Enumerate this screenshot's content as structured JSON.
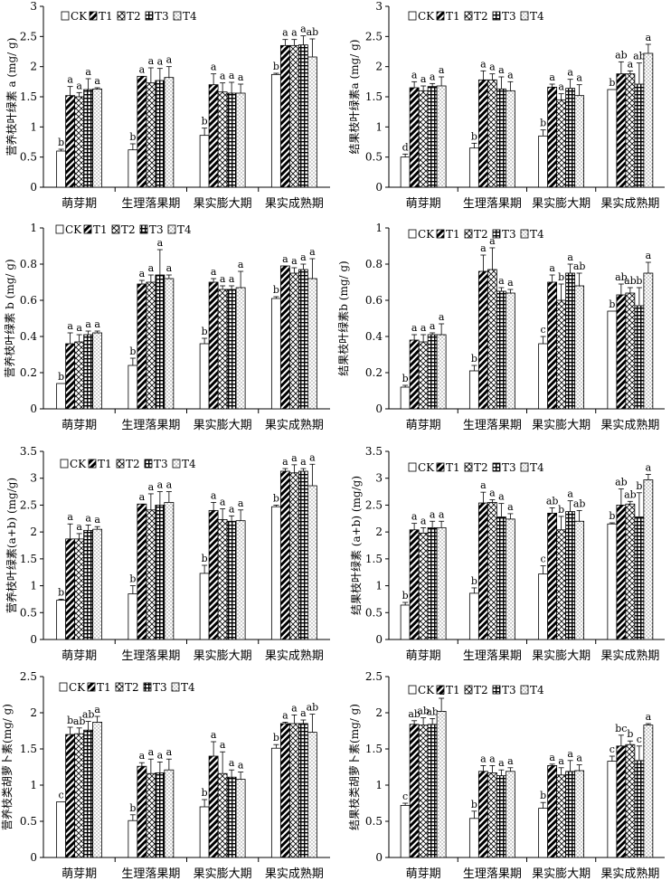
{
  "figure": {
    "groups": [
      "萌芽期",
      "生理落果期",
      "果实膨大期",
      "果实成熟期"
    ],
    "treatments": [
      "CK",
      "T1",
      "T2",
      "T3",
      "T4"
    ]
  },
  "chart_data": [
    {
      "type": "bar",
      "id": "a1",
      "ylabel": "营养枝叶绿素 a (mg/ g)",
      "ylim": [
        0,
        3
      ],
      "yticks": [
        0,
        0.5,
        1,
        1.5,
        2,
        2.5,
        3
      ],
      "categories": [
        "萌芽期",
        "生理落果期",
        "果实膨大期",
        "果实成熟期"
      ],
      "series": [
        {
          "name": "CK",
          "values": [
            0.6,
            0.62,
            0.86,
            1.87
          ],
          "err": [
            0.03,
            0.1,
            0.12,
            0.02
          ],
          "letters": [
            "b",
            "b",
            "b",
            "b"
          ]
        },
        {
          "name": "T1",
          "values": [
            1.52,
            1.84,
            1.7,
            2.35
          ],
          "err": [
            0.15,
            0.0,
            0.18,
            0.1
          ],
          "letters": [
            "a",
            "a",
            "a",
            "a"
          ]
        },
        {
          "name": "T2",
          "values": [
            1.5,
            1.73,
            1.58,
            2.35
          ],
          "err": [
            0.07,
            0.25,
            0.15,
            0.1
          ],
          "letters": [
            "a",
            "a",
            "a",
            "a"
          ]
        },
        {
          "name": "T3",
          "values": [
            1.62,
            1.77,
            1.56,
            2.36
          ],
          "err": [
            0.18,
            0.2,
            0.18,
            0.15
          ],
          "letters": [
            "a",
            "a",
            "a",
            "a"
          ]
        },
        {
          "name": "T4",
          "values": [
            1.63,
            1.82,
            1.56,
            2.16
          ],
          "err": [
            0.02,
            0.18,
            0.15,
            0.3
          ],
          "letters": [
            "a",
            "a",
            "a",
            "ab"
          ]
        }
      ]
    },
    {
      "type": "bar",
      "id": "a2",
      "ylabel": "结果枝叶绿素a (mg/ g)",
      "ylim": [
        0,
        3
      ],
      "yticks": [
        0,
        0.5,
        1,
        1.5,
        2,
        2.5,
        3
      ],
      "categories": [
        "萌芽期",
        "生理落果期",
        "果实膨大期",
        "果实成熟期"
      ],
      "series": [
        {
          "name": "CK",
          "values": [
            0.5,
            0.65,
            0.85,
            1.62
          ],
          "err": [
            0.05,
            0.08,
            0.1,
            0.0
          ],
          "letters": [
            "d",
            "b",
            "b",
            "b"
          ]
        },
        {
          "name": "T1",
          "values": [
            1.65,
            1.78,
            1.66,
            1.88
          ],
          "err": [
            0.1,
            0.15,
            0.05,
            0.2
          ],
          "letters": [
            "a",
            "a",
            "a",
            "ab"
          ]
        },
        {
          "name": "T2",
          "values": [
            1.6,
            1.78,
            1.45,
            1.88
          ],
          "err": [
            0.08,
            0.1,
            0.1,
            0.05
          ],
          "letters": [
            "a",
            "a",
            "a",
            "a"
          ]
        },
        {
          "name": "T3",
          "values": [
            1.67,
            1.63,
            1.64,
            1.71
          ],
          "err": [
            0.05,
            0.2,
            0.15,
            0.35
          ],
          "letters": [
            "a",
            "a",
            "a",
            "ab"
          ]
        },
        {
          "name": "T4",
          "values": [
            1.68,
            1.6,
            1.52,
            2.22
          ],
          "err": [
            0.15,
            0.15,
            0.18,
            0.15
          ],
          "letters": [
            "a",
            "a",
            "a",
            "a"
          ]
        }
      ]
    },
    {
      "type": "bar",
      "id": "b1",
      "ylabel": "营养枝叶绿素 b (mg/ g)",
      "ylim": [
        0,
        1
      ],
      "yticks": [
        0,
        0.2,
        0.4,
        0.6,
        0.8,
        1
      ],
      "categories": [
        "萌芽期",
        "生理落果期",
        "果实膨大期",
        "果实成熟期"
      ],
      "series": [
        {
          "name": "CK",
          "values": [
            0.14,
            0.24,
            0.36,
            0.61
          ],
          "err": [
            0.0,
            0.04,
            0.03,
            0.01
          ],
          "letters": [
            "b",
            "b",
            "b",
            "b"
          ]
        },
        {
          "name": "T1",
          "values": [
            0.36,
            0.69,
            0.7,
            0.79
          ],
          "err": [
            0.06,
            0.02,
            0.02,
            0.0
          ],
          "letters": [
            "a",
            "a",
            "a",
            "a"
          ]
        },
        {
          "name": "T2",
          "values": [
            0.37,
            0.7,
            0.66,
            0.75
          ],
          "err": [
            0.04,
            0.04,
            0.02,
            0.03
          ],
          "letters": [
            "a",
            "a",
            "a",
            "a"
          ]
        },
        {
          "name": "T3",
          "values": [
            0.41,
            0.74,
            0.66,
            0.77
          ],
          "err": [
            0.02,
            0.14,
            0.02,
            0.03
          ],
          "letters": [
            "a",
            "a",
            "a",
            "a"
          ]
        },
        {
          "name": "T4",
          "values": [
            0.42,
            0.72,
            0.67,
            0.72
          ],
          "err": [
            0.01,
            0.02,
            0.09,
            0.11
          ],
          "letters": [
            "a",
            "a",
            "a",
            "a"
          ]
        }
      ]
    },
    {
      "type": "bar",
      "id": "b2",
      "ylabel": "结果枝叶绿素b (mg/ g)",
      "ylim": [
        0,
        1
      ],
      "yticks": [
        0,
        0.2,
        0.4,
        0.6,
        0.8,
        1
      ],
      "categories": [
        "萌芽期",
        "生理落果期",
        "果实膨大期",
        "果实成熟期"
      ],
      "series": [
        {
          "name": "CK",
          "values": [
            0.12,
            0.21,
            0.36,
            0.54
          ],
          "err": [
            0.01,
            0.03,
            0.04,
            0.0
          ],
          "letters": [
            "b",
            "b",
            "c",
            "b"
          ]
        },
        {
          "name": "T1",
          "values": [
            0.38,
            0.76,
            0.7,
            0.63
          ],
          "err": [
            0.03,
            0.09,
            0.04,
            0.06
          ],
          "letters": [
            "a",
            "a",
            "a",
            "ab"
          ]
        },
        {
          "name": "T2",
          "values": [
            0.37,
            0.77,
            0.6,
            0.64
          ],
          "err": [
            0.04,
            0.12,
            0.09,
            0.03
          ],
          "letters": [
            "a",
            "a",
            "b",
            "ab"
          ]
        },
        {
          "name": "T3",
          "values": [
            0.41,
            0.65,
            0.75,
            0.57
          ],
          "err": [
            0.01,
            0.02,
            0.05,
            0.1
          ],
          "letters": [
            "a",
            "a",
            "a",
            "b"
          ]
        },
        {
          "name": "T4",
          "values": [
            0.41,
            0.64,
            0.68,
            0.75
          ],
          "err": [
            0.06,
            0.02,
            0.07,
            0.06
          ],
          "letters": [
            "a",
            "a",
            "ab",
            "a"
          ]
        }
      ]
    },
    {
      "type": "bar",
      "id": "ab1",
      "ylabel": "营养枝叶绿素(a+b) (mg/g)",
      "ylim": [
        0,
        3.5
      ],
      "yticks": [
        0,
        0.5,
        1,
        1.5,
        2,
        2.5,
        3,
        3.5
      ],
      "categories": [
        "萌芽期",
        "生理落果期",
        "果实膨大期",
        "果实成熟期"
      ],
      "series": [
        {
          "name": "CK",
          "values": [
            0.73,
            0.85,
            1.23,
            2.47
          ],
          "err": [
            0.02,
            0.15,
            0.15,
            0.03
          ],
          "letters": [
            "b",
            "b",
            "b",
            "b"
          ]
        },
        {
          "name": "T1",
          "values": [
            1.87,
            2.52,
            2.4,
            3.13
          ],
          "err": [
            0.28,
            0.0,
            0.15,
            0.05
          ],
          "letters": [
            "a",
            "a",
            "a",
            "a"
          ]
        },
        {
          "name": "T2",
          "values": [
            1.87,
            2.41,
            2.23,
            3.1
          ],
          "err": [
            0.1,
            0.3,
            0.2,
            0.15
          ],
          "letters": [
            "a",
            "a",
            "a",
            "a"
          ]
        },
        {
          "name": "T3",
          "values": [
            2.03,
            2.5,
            2.2,
            3.13
          ],
          "err": [
            0.1,
            0.25,
            0.1,
            0.05
          ],
          "letters": [
            "a",
            "a",
            "a",
            "a"
          ]
        },
        {
          "name": "T4",
          "values": [
            2.05,
            2.55,
            2.21,
            2.86
          ],
          "err": [
            0.05,
            0.2,
            0.2,
            0.4
          ],
          "letters": [
            "a",
            "a",
            "a",
            "a"
          ]
        }
      ]
    },
    {
      "type": "bar",
      "id": "ab2",
      "ylabel": "结果枝叶绿素 (a+b) (mg/g)",
      "ylim": [
        0,
        3.5
      ],
      "yticks": [
        0,
        0.5,
        1,
        1.5,
        2,
        2.5,
        3,
        3.5
      ],
      "categories": [
        "萌芽期",
        "生理落果期",
        "果实膨大期",
        "果实成熟期"
      ],
      "series": [
        {
          "name": "CK",
          "values": [
            0.64,
            0.86,
            1.22,
            2.15
          ],
          "err": [
            0.05,
            0.1,
            0.15,
            0.02
          ],
          "letters": [
            "b",
            "b",
            "c",
            "b"
          ]
        },
        {
          "name": "T1",
          "values": [
            2.04,
            2.54,
            2.35,
            2.5
          ],
          "err": [
            0.12,
            0.2,
            0.1,
            0.3
          ],
          "letters": [
            "a",
            "a",
            "ab",
            "ab"
          ]
        },
        {
          "name": "T2",
          "values": [
            1.98,
            2.55,
            2.04,
            2.52
          ],
          "err": [
            0.1,
            0.05,
            0.25,
            0.05
          ],
          "letters": [
            "a",
            "a",
            "b",
            "ab"
          ]
        },
        {
          "name": "T3",
          "values": [
            2.08,
            2.28,
            2.38,
            2.28
          ],
          "err": [
            0.12,
            0.25,
            0.2,
            0.45
          ],
          "letters": [
            "a",
            "a",
            "a",
            "b"
          ]
        },
        {
          "name": "T4",
          "values": [
            2.08,
            2.24,
            2.2,
            2.97
          ],
          "err": [
            0.12,
            0.1,
            0.2,
            0.1
          ],
          "letters": [
            "a",
            "a",
            "ab",
            "a"
          ]
        }
      ]
    },
    {
      "type": "bar",
      "id": "c1",
      "ylabel": "营养枝类胡萝卜素(mg/ g)",
      "ylim": [
        0,
        2.5
      ],
      "yticks": [
        0,
        0.5,
        1,
        1.5,
        2,
        2.5
      ],
      "categories": [
        "萌芽期",
        "生理落果期",
        "果实膨大期",
        "果实成熟期"
      ],
      "series": [
        {
          "name": "CK",
          "values": [
            0.77,
            0.51,
            0.7,
            1.51
          ],
          "err": [
            0.0,
            0.08,
            0.1,
            0.05
          ],
          "letters": [
            "c",
            "b",
            "b",
            "b"
          ]
        },
        {
          "name": "T1",
          "values": [
            1.7,
            1.26,
            1.4,
            1.85
          ],
          "err": [
            0.1,
            0.05,
            0.2,
            0.02
          ],
          "letters": [
            "b",
            "a",
            "a",
            "a"
          ]
        },
        {
          "name": "T2",
          "values": [
            1.71,
            1.16,
            1.16,
            1.85
          ],
          "err": [
            0.08,
            0.2,
            0.3,
            0.12
          ],
          "letters": [
            "ab",
            "a",
            "a",
            "a"
          ]
        },
        {
          "name": "T3",
          "values": [
            1.76,
            1.17,
            1.11,
            1.85
          ],
          "err": [
            0.12,
            0.15,
            0.1,
            0.05
          ],
          "letters": [
            "ab",
            "a",
            "a",
            "a"
          ]
        },
        {
          "name": "T4",
          "values": [
            1.87,
            1.21,
            1.08,
            1.73
          ],
          "err": [
            0.08,
            0.15,
            0.1,
            0.25
          ],
          "letters": [
            "a",
            "a",
            "a",
            "ab"
          ]
        }
      ]
    },
    {
      "type": "bar",
      "id": "c2",
      "ylabel": "结果枝类胡萝卜素(mg/ g)",
      "ylim": [
        0,
        2.5
      ],
      "yticks": [
        0,
        0.5,
        1,
        1.5,
        2,
        2.5
      ],
      "categories": [
        "萌芽期",
        "生理落果期",
        "果实膨大期",
        "果实成熟期"
      ],
      "series": [
        {
          "name": "CK",
          "values": [
            0.72,
            0.54,
            0.68,
            1.33
          ],
          "err": [
            0.03,
            0.1,
            0.08,
            0.07
          ],
          "letters": [
            "c",
            "b",
            "b",
            "c"
          ]
        },
        {
          "name": "T1",
          "values": [
            1.84,
            1.19,
            1.27,
            1.54
          ],
          "err": [
            0.05,
            0.08,
            0.02,
            0.15
          ],
          "letters": [
            "ab",
            "a",
            "a",
            "bc"
          ]
        },
        {
          "name": "T2",
          "values": [
            1.83,
            1.17,
            1.14,
            1.56
          ],
          "err": [
            0.1,
            0.1,
            0.1,
            0.05
          ],
          "letters": [
            "ab",
            "a",
            "a",
            "b"
          ]
        },
        {
          "name": "T3",
          "values": [
            1.84,
            1.13,
            1.19,
            1.34
          ],
          "err": [
            0.08,
            0.08,
            0.15,
            0.2
          ],
          "letters": [
            "ab",
            "a",
            "a",
            "c"
          ]
        },
        {
          "name": "T4",
          "values": [
            2.02,
            1.19,
            1.2,
            1.83
          ],
          "err": [
            0.18,
            0.05,
            0.08,
            0.02
          ],
          "letters": [
            "a",
            "a",
            "a",
            "a"
          ]
        }
      ]
    }
  ]
}
